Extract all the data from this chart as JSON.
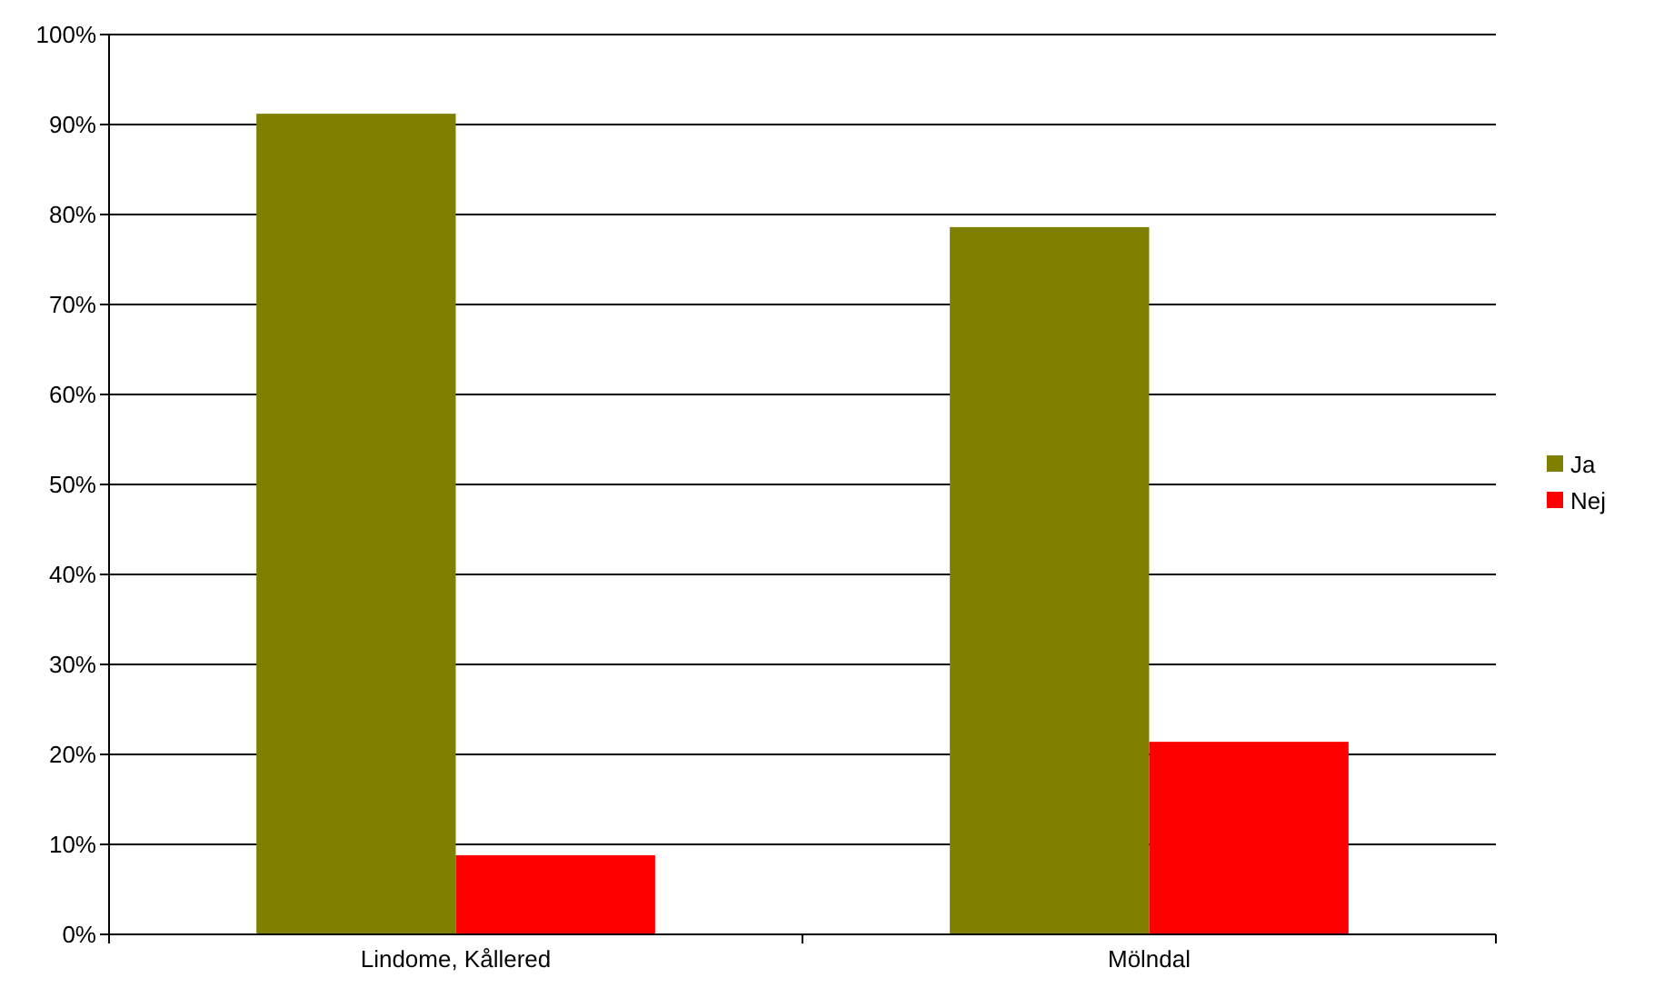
{
  "chart_data": {
    "type": "bar",
    "categories": [
      "Lindome, Kållered",
      "Mölndal"
    ],
    "series": [
      {
        "name": "Ja",
        "color": "#808000",
        "values": [
          91.2,
          78.6
        ]
      },
      {
        "name": "Nej",
        "color": "#ff0000",
        "values": [
          8.8,
          21.4
        ]
      }
    ],
    "ylim": [
      0,
      100
    ],
    "yticks": [
      {
        "value": 0,
        "label": "0%"
      },
      {
        "value": 10,
        "label": "10%"
      },
      {
        "value": 20,
        "label": "20%"
      },
      {
        "value": 30,
        "label": "30%"
      },
      {
        "value": 40,
        "label": "40%"
      },
      {
        "value": 50,
        "label": "50%"
      },
      {
        "value": 60,
        "label": "60%"
      },
      {
        "value": 70,
        "label": "70%"
      },
      {
        "value": 80,
        "label": "80%"
      },
      {
        "value": 90,
        "label": "90%"
      },
      {
        "value": 100,
        "label": "100%"
      }
    ],
    "grid": "y",
    "legend": "right"
  }
}
